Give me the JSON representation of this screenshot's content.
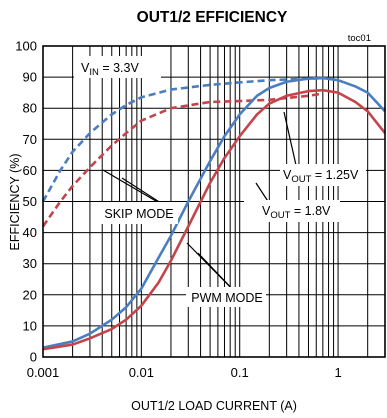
{
  "chart_data": {
    "type": "line",
    "title": "OUT1/2 EFFICIENCY",
    "code": "toc01",
    "xlabel": "OUT1/2 LOAD CURRENT (A)",
    "ylabel": "EFFICIENCY (%)",
    "xscale": "log",
    "xlim": [
      0.001,
      3
    ],
    "ylim": [
      0,
      100
    ],
    "x_ticks": [
      {
        "v": 0.001,
        "label": "0.001"
      },
      {
        "v": 0.01,
        "label": "0.01"
      },
      {
        "v": 0.1,
        "label": "0.1"
      },
      {
        "v": 1,
        "label": "1"
      }
    ],
    "y_ticks": [
      0,
      10,
      20,
      30,
      40,
      50,
      60,
      70,
      80,
      90,
      100
    ],
    "grid": true,
    "annotations": {
      "vin": {
        "main": "V",
        "sub": "IN",
        "rest": " = 3.3V"
      },
      "v125": {
        "main": "V",
        "sub": "OUT",
        "rest": " = 1.25V"
      },
      "v18": {
        "main": "V",
        "sub": "OUT",
        "rest": " = 1.8V"
      },
      "skip": "SKIP MODE",
      "pwm": "PWM MODE"
    },
    "series": [
      {
        "color": "#4a7ec0",
        "style": "dashed",
        "x": [
          0.001,
          0.0015,
          0.002,
          0.003,
          0.005,
          0.007,
          0.01,
          0.02,
          0.05,
          0.1,
          0.2,
          0.5,
          0.7
        ],
        "y": [
          50,
          60,
          66,
          72,
          78,
          81,
          83.5,
          86,
          87.5,
          88.3,
          89,
          89.5,
          89.7
        ]
      },
      {
        "color": "#c4444c",
        "style": "dashed",
        "x": [
          0.001,
          0.0015,
          0.002,
          0.003,
          0.005,
          0.007,
          0.01,
          0.02,
          0.05,
          0.1,
          0.2,
          0.5,
          0.7
        ],
        "y": [
          42,
          50,
          55,
          61,
          68,
          72,
          76,
          80,
          82,
          82.3,
          82.7,
          84,
          84.7
        ]
      },
      {
        "color": "#4a7ec0",
        "style": "solid",
        "x": [
          0.001,
          0.002,
          0.003,
          0.005,
          0.007,
          0.01,
          0.015,
          0.02,
          0.03,
          0.05,
          0.07,
          0.1,
          0.15,
          0.2,
          0.3,
          0.5,
          0.7,
          1,
          1.5,
          2,
          3
        ],
        "y": [
          3,
          5,
          7.5,
          12,
          16,
          22,
          32,
          39,
          50,
          63,
          71,
          78,
          84,
          86.5,
          88.5,
          89.5,
          89.7,
          89,
          87,
          85,
          79
        ]
      },
      {
        "color": "#c4444c",
        "style": "solid",
        "x": [
          0.001,
          0.002,
          0.003,
          0.005,
          0.007,
          0.01,
          0.015,
          0.02,
          0.03,
          0.05,
          0.07,
          0.1,
          0.15,
          0.2,
          0.3,
          0.5,
          0.7,
          1,
          1.5,
          2,
          3
        ],
        "y": [
          2.5,
          4,
          6,
          9,
          12,
          16.5,
          24,
          31,
          42,
          56,
          64,
          71,
          78,
          81.5,
          84,
          85.5,
          85.8,
          85,
          82,
          79,
          72
        ]
      }
    ]
  }
}
